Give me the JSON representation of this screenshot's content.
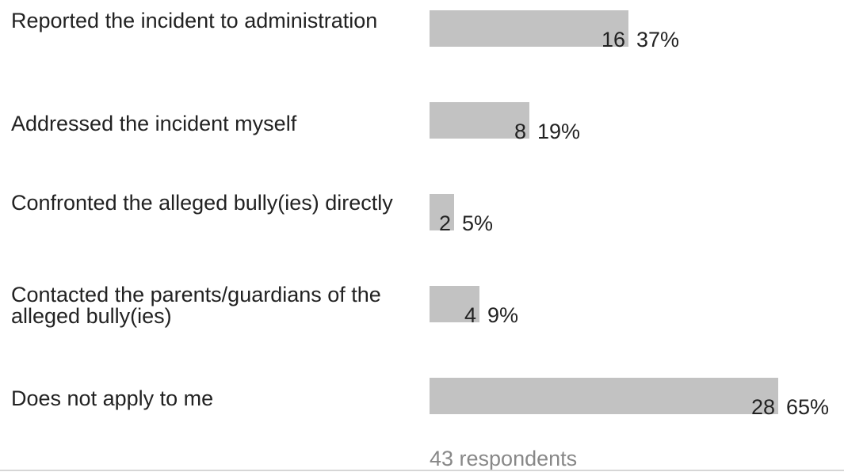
{
  "chart_data": {
    "type": "bar",
    "orientation": "horizontal",
    "categories": [
      "Reported the incident to administration",
      "Addressed the incident myself",
      "Confronted the alleged bully(ies) directly",
      "Contacted the parents/guardians of the alleged bully(ies)",
      "Does not apply to me"
    ],
    "values": [
      16,
      8,
      2,
      4,
      28
    ],
    "percent_labels": [
      "37%",
      "19%",
      "5%",
      "9%",
      "65%"
    ],
    "respondents_label": "43 respondents",
    "grid": false,
    "bar_color": "#c2c2c2"
  }
}
